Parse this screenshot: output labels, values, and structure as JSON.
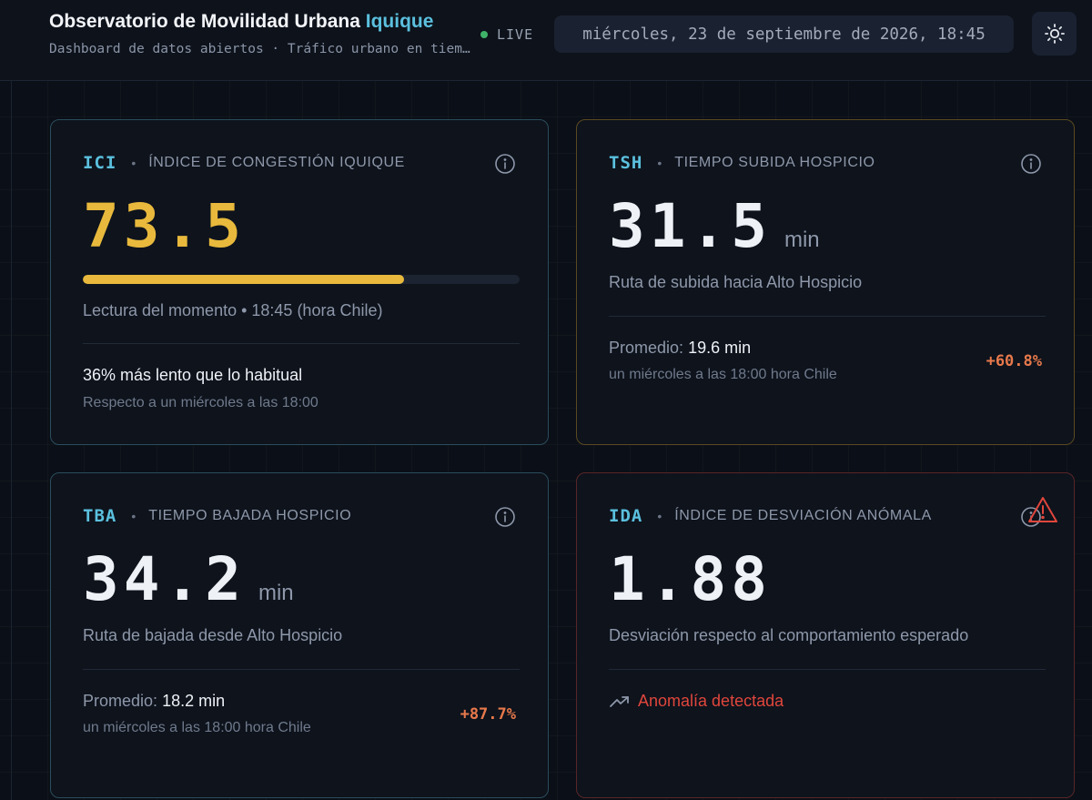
{
  "header": {
    "title_main": "Observatorio de Movilidad Urbana",
    "title_accent": "Iquique",
    "subtitle": "Dashboard de datos abiertos · Tráfico urbano en tiempo real",
    "live_label": "LIVE",
    "datetime": "miércoles, 23 de septiembre de 2026, 18:45",
    "theme_icon": "sun-icon"
  },
  "cards": {
    "ici": {
      "code": "ICI",
      "separator": "•",
      "description": "ÍNDICE DE CONGESTIÓN IQUIQUE",
      "value": "73.5",
      "progress_pct": 73.5,
      "reading": "Lectura del momento • 18:45 (hora Chile)",
      "comparison": "36% más lento que lo habitual",
      "comparison_sub": "Respecto a un miércoles a las 18:00"
    },
    "tsh": {
      "code": "TSH",
      "separator": "•",
      "description": "TIEMPO SUBIDA HOSPICIO",
      "value": "31.5",
      "unit": "min",
      "caption": "Ruta de subida hacia Alto Hospicio",
      "avg_label": "Promedio:",
      "avg_value": "19.6 min",
      "avg_sub": "un miércoles a las 18:00 hora Chile",
      "delta": "+60.8%"
    },
    "tba": {
      "code": "TBA",
      "separator": "•",
      "description": "TIEMPO BAJADA HOSPICIO",
      "value": "34.2",
      "unit": "min",
      "caption": "Ruta de bajada desde Alto Hospicio",
      "avg_label": "Promedio:",
      "avg_value": "18.2 min",
      "avg_sub": "un miércoles a las 18:00 hora Chile",
      "delta": "+87.7%"
    },
    "ida": {
      "code": "IDA",
      "separator": "•",
      "description": "ÍNDICE DE DESVIACIÓN ANÓMALA",
      "value": "1.88",
      "caption": "Desviación respecto al comportamiento esperado",
      "anomaly_text": "Anomalía detectada"
    }
  },
  "colors": {
    "accent": "#5bc0de",
    "yellow": "#e8b93c",
    "delta": "#e8794b",
    "alert": "#e0463c",
    "live": "#3fb26a"
  }
}
